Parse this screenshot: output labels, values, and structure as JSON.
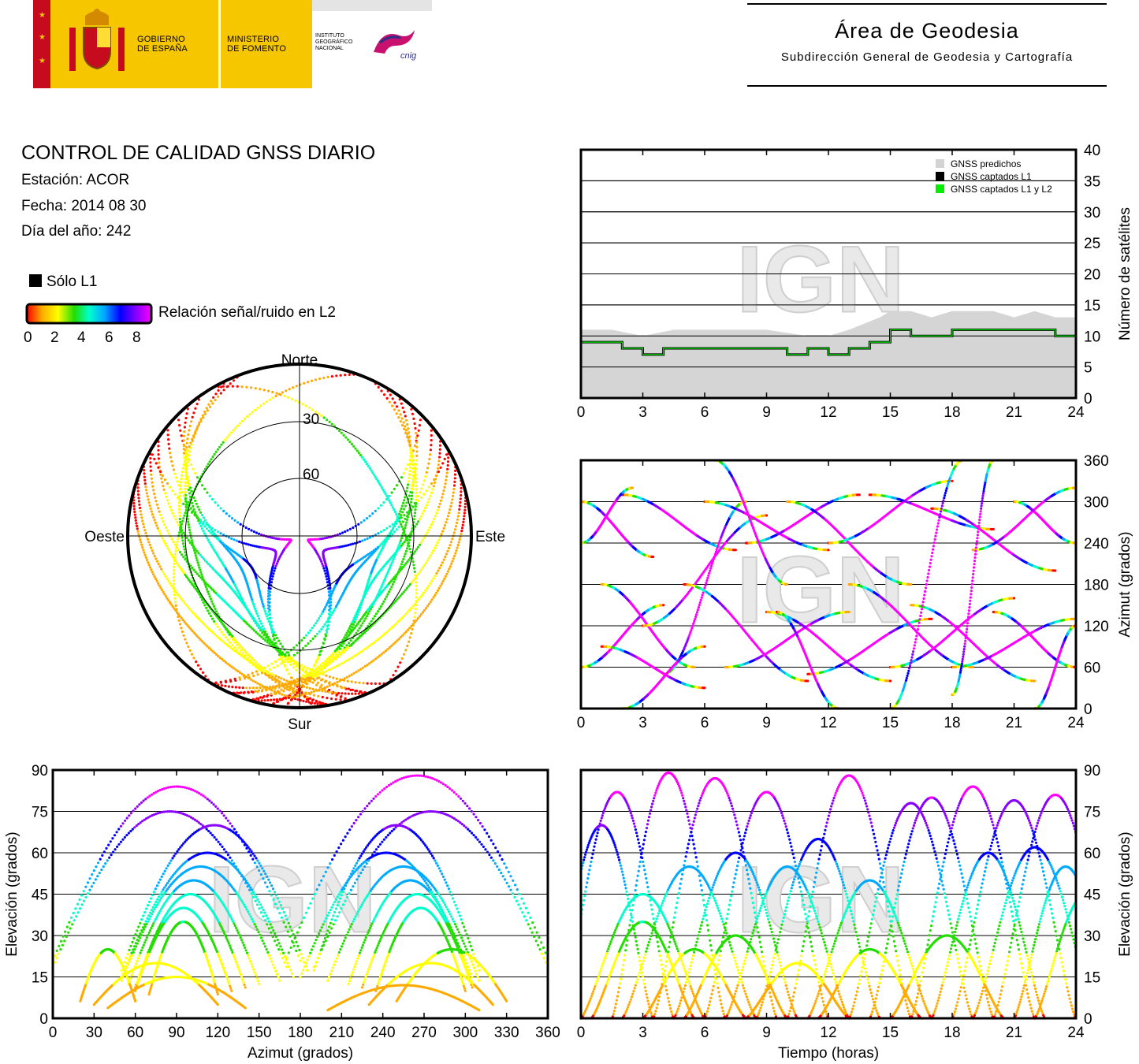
{
  "header": {
    "gobierno": [
      "GOBIERNO",
      "DE ESPAÑA"
    ],
    "ministerio": [
      "MINISTERIO",
      "DE FOMENTO"
    ],
    "instituto": [
      "INSTITUTO",
      "GEOGRÁFICO",
      "NACIONAL"
    ],
    "cnig": "cnig",
    "area_title": "Área de Geodesia",
    "area_subtitle": "Subdirección General de Geodesia y Cartografía"
  },
  "report": {
    "title": "CONTROL DE CALIDAD GNSS DIARIO",
    "station": "Estación: ACOR",
    "date": "Fecha: 2014 08 30",
    "doy": "Día del año: 242"
  },
  "legend": {
    "l1_only": "Sólo L1",
    "snr_label": "Relación señal/ruido en L2",
    "snr_ticks": [
      "0",
      "2",
      "4",
      "6",
      "8"
    ],
    "colors": {
      "l1_only": "#000000",
      "snr_scale": [
        "#ff0000",
        "#ffaa00",
        "#ffff00",
        "#22dd00",
        "#00ffcc",
        "#00aaff",
        "#0000ff",
        "#8800ff",
        "#ff00ff"
      ]
    }
  },
  "watermark": "IGN",
  "chart_data": [
    {
      "type": "polar",
      "id": "skyplot",
      "directions": {
        "north": "Norte",
        "south": "Sur",
        "east": "Este",
        "west": "Oeste"
      },
      "ring_labels": [
        "30",
        "60"
      ],
      "rings_elevation": [
        30,
        60
      ],
      "tracks": [
        {
          "start_az": 315,
          "max_el": 85,
          "snr": 9
        },
        {
          "start_az": 320,
          "max_el": 55,
          "snr": 6
        },
        {
          "start_az": 325,
          "max_el": 48,
          "snr": 5
        },
        {
          "start_az": 330,
          "max_el": 40,
          "snr": 4
        },
        {
          "start_az": 335,
          "max_el": 35,
          "snr": 4
        },
        {
          "start_az": 340,
          "max_el": 30,
          "snr": 3
        },
        {
          "start_az": 305,
          "max_el": 45,
          "snr": 5
        },
        {
          "start_az": 300,
          "max_el": 38,
          "snr": 4
        },
        {
          "start_az": 295,
          "max_el": 30,
          "snr": 3
        },
        {
          "start_az": 310,
          "max_el": 60,
          "snr": 7
        },
        {
          "start_az": 45,
          "max_el": 85,
          "snr": 9
        },
        {
          "start_az": 40,
          "max_el": 55,
          "snr": 6
        },
        {
          "start_az": 35,
          "max_el": 48,
          "snr": 5
        },
        {
          "start_az": 30,
          "max_el": 40,
          "snr": 4
        },
        {
          "start_az": 25,
          "max_el": 35,
          "snr": 4
        },
        {
          "start_az": 20,
          "max_el": 30,
          "snr": 3
        },
        {
          "start_az": 55,
          "max_el": 45,
          "snr": 5
        },
        {
          "start_az": 60,
          "max_el": 38,
          "snr": 4
        },
        {
          "start_az": 65,
          "max_el": 30,
          "snr": 3
        },
        {
          "start_az": 50,
          "max_el": 60,
          "snr": 7
        },
        {
          "start_az": 300,
          "max_el": 75,
          "snr": 8
        },
        {
          "start_az": 60,
          "max_el": 75,
          "snr": 8
        },
        {
          "start_az": 290,
          "max_el": 22,
          "snr": 2
        },
        {
          "start_az": 70,
          "max_el": 22,
          "snr": 2
        },
        {
          "start_az": 285,
          "max_el": 15,
          "snr": 2
        },
        {
          "start_az": 75,
          "max_el": 15,
          "snr": 2
        }
      ]
    },
    {
      "type": "line",
      "id": "sat-count",
      "ylabel": "Número de satélites",
      "xlim": [
        0,
        24
      ],
      "ylim": [
        0,
        40
      ],
      "xticks": [
        0,
        3,
        6,
        9,
        12,
        15,
        18,
        21,
        24
      ],
      "yticks": [
        0,
        5,
        10,
        15,
        20,
        25,
        30,
        35,
        40
      ],
      "legend": [
        "GNSS predichos",
        "GNSS captados L1",
        "GNSS captados L1 y L2"
      ],
      "legend_colors": [
        "#d3d3d3",
        "#000000",
        "#00ee00"
      ],
      "series": [
        {
          "name": "GNSS predichos",
          "x": [
            0,
            1.5,
            3,
            4.5,
            6,
            7,
            9,
            11,
            12,
            13,
            14.5,
            15,
            16,
            17,
            18,
            19,
            20,
            21,
            22,
            23,
            24
          ],
          "values": [
            11,
            11,
            10,
            11,
            11,
            11,
            11,
            10,
            10,
            11,
            13,
            14,
            14,
            13,
            14,
            14,
            14,
            13,
            14,
            13,
            13
          ]
        },
        {
          "name": "GNSS captados L1",
          "x": [
            0,
            1,
            2,
            3,
            4,
            5,
            6,
            7,
            8,
            9,
            10,
            11,
            12,
            13,
            14,
            15,
            16,
            17,
            18,
            19,
            20,
            21,
            22,
            23,
            24
          ],
          "values": [
            9,
            9,
            8,
            7,
            8,
            8,
            8,
            8,
            8,
            8,
            7,
            8,
            7,
            8,
            9,
            11,
            10,
            10,
            11,
            11,
            11,
            11,
            11,
            10,
            11
          ]
        },
        {
          "name": "GNSS captados L1 y L2",
          "x": [
            0,
            1,
            2,
            3,
            4,
            5,
            6,
            7,
            8,
            9,
            10,
            11,
            12,
            13,
            14,
            15,
            16,
            17,
            18,
            19,
            20,
            21,
            22,
            23,
            24
          ],
          "values": [
            9,
            9,
            8,
            7,
            8,
            8,
            8,
            8,
            8,
            8,
            7,
            8,
            7,
            8,
            9,
            11,
            10,
            10,
            11,
            11,
            11,
            11,
            11,
            10,
            11
          ]
        }
      ],
      "grid": true
    },
    {
      "type": "scatter",
      "id": "azimuth-time",
      "ylabel": "Azimut (grados)",
      "xlim": [
        0,
        24
      ],
      "ylim": [
        0,
        360
      ],
      "xticks": [
        0,
        3,
        6,
        9,
        12,
        15,
        18,
        21,
        24
      ],
      "yticks": [
        0,
        60,
        120,
        180,
        240,
        300,
        360
      ],
      "tracks": [
        {
          "t0": 0,
          "t1": 3.5,
          "az0": 300,
          "az1": 220
        },
        {
          "t0": 0,
          "t1": 4,
          "az0": 60,
          "az1": 150
        },
        {
          "t0": 1,
          "t1": 5.5,
          "az0": 180,
          "az1": 60
        },
        {
          "t0": 2,
          "t1": 7.5,
          "az0": 310,
          "az1": 230
        },
        {
          "t0": 3,
          "t1": 9,
          "az0": 120,
          "az1": 280
        },
        {
          "t0": 4,
          "t1": 8,
          "az0": 50,
          "az1": 300
        },
        {
          "t0": 5,
          "t1": 11,
          "az0": 180,
          "az1": 40
        },
        {
          "t0": 6,
          "t1": 12,
          "az0": 300,
          "az1": 230
        },
        {
          "t0": 7,
          "t1": 13,
          "az0": 60,
          "az1": 140
        },
        {
          "t0": 8,
          "t1": 13.5,
          "az0": 240,
          "az1": 310
        },
        {
          "t0": 9,
          "t1": 15,
          "az0": 140,
          "az1": 40
        },
        {
          "t0": 10,
          "t1": 16,
          "az0": 300,
          "az1": 180
        },
        {
          "t0": 11,
          "t1": 17,
          "az0": 50,
          "az1": 130
        },
        {
          "t0": 12,
          "t1": 18,
          "az0": 240,
          "az1": 330
        },
        {
          "t0": 13,
          "t1": 19,
          "az0": 180,
          "az1": 60
        },
        {
          "t0": 14,
          "t1": 20,
          "az0": 310,
          "az1": 260
        },
        {
          "t0": 15,
          "t1": 21,
          "az0": 60,
          "az1": 160
        },
        {
          "t0": 16,
          "t1": 22,
          "az0": 150,
          "az1": 40
        },
        {
          "t0": 17,
          "t1": 23,
          "az0": 290,
          "az1": 200
        },
        {
          "t0": 18,
          "t1": 24,
          "az0": 60,
          "az1": 130
        },
        {
          "t0": 19,
          "t1": 24,
          "az0": 230,
          "az1": 320
        },
        {
          "t0": 20,
          "t1": 24,
          "az0": 140,
          "az1": 60
        },
        {
          "t0": 21,
          "t1": 24,
          "az0": 300,
          "az1": 240
        },
        {
          "t0": 0,
          "t1": 2.5,
          "az0": 240,
          "az1": 320
        },
        {
          "t0": 1,
          "t1": 6,
          "az0": 90,
          "az1": 30
        },
        {
          "t0": 2,
          "t1": 6,
          "az0": 0,
          "az1": 90
        },
        {
          "t0": 6.5,
          "t1": 10,
          "az0": 360,
          "az1": 180
        },
        {
          "t0": 9.5,
          "t1": 12.5,
          "az0": 140,
          "az1": 0
        },
        {
          "t0": 15,
          "t1": 18.5,
          "az0": 0,
          "az1": 360
        },
        {
          "t0": 18,
          "t1": 20,
          "az0": 20,
          "az1": 360
        },
        {
          "t0": 22,
          "t1": 24,
          "az0": 0,
          "az1": 120
        }
      ],
      "grid": true
    },
    {
      "type": "scatter",
      "id": "elev-azimuth",
      "xlabel": "Azimut (grados)",
      "ylabel": "Elevación (grados)",
      "xlim": [
        0,
        360
      ],
      "ylim": [
        0,
        90
      ],
      "xticks": [
        0,
        30,
        60,
        90,
        120,
        150,
        180,
        210,
        240,
        270,
        300,
        330,
        360
      ],
      "yticks": [
        0,
        15,
        30,
        45,
        60,
        75,
        90
      ],
      "arches": [
        {
          "az0": 0,
          "az1": 170,
          "peak": 75
        },
        {
          "az0": 50,
          "az1": 185,
          "peak": 70
        },
        {
          "az0": 50,
          "az1": 175,
          "peak": 60
        },
        {
          "az0": 50,
          "az1": 165,
          "peak": 55
        },
        {
          "az0": 55,
          "az1": 150,
          "peak": 50
        },
        {
          "az0": 60,
          "az1": 140,
          "peak": 45
        },
        {
          "az0": 60,
          "az1": 130,
          "peak": 40
        },
        {
          "az0": 70,
          "az1": 120,
          "peak": 35
        },
        {
          "az0": 190,
          "az1": 310,
          "peak": 70
        },
        {
          "az0": 180,
          "az1": 305,
          "peak": 60
        },
        {
          "az0": 200,
          "az1": 310,
          "peak": 55
        },
        {
          "az0": 215,
          "az1": 305,
          "peak": 50
        },
        {
          "az0": 225,
          "az1": 305,
          "peak": 45
        },
        {
          "az0": 235,
          "az1": 300,
          "peak": 40
        },
        {
          "az0": 190,
          "az1": 360,
          "peak": 75
        },
        {
          "az0": 20,
          "az1": 60,
          "peak": 25
        },
        {
          "az0": 30,
          "az1": 120,
          "peak": 20
        },
        {
          "az0": 40,
          "az1": 140,
          "peak": 15
        },
        {
          "az0": 250,
          "az1": 330,
          "peak": 25
        },
        {
          "az0": 230,
          "az1": 320,
          "peak": 20
        },
        {
          "az0": 200,
          "az1": 310,
          "peak": 12
        },
        {
          "az0": 170,
          "az1": 360,
          "peak": 88
        },
        {
          "az0": 0,
          "az1": 180,
          "peak": 84
        }
      ],
      "grid": true
    },
    {
      "type": "line",
      "id": "elev-time",
      "xlabel": "Tiempo (horas)",
      "ylabel": "Elevación (grados)",
      "xlim": [
        0,
        24
      ],
      "ylim": [
        0,
        90
      ],
      "xticks": [
        0,
        3,
        6,
        9,
        12,
        15,
        18,
        21,
        24
      ],
      "yticks": [
        0,
        15,
        30,
        45,
        60,
        75,
        90
      ],
      "passes": [
        {
          "t0": -1.5,
          "t1": 3.5,
          "peak": 70
        },
        {
          "t0": -1,
          "t1": 4.5,
          "peak": 82
        },
        {
          "t0": 0,
          "t1": 6,
          "peak": 45
        },
        {
          "t0": 0.5,
          "t1": 5.5,
          "peak": 35
        },
        {
          "t0": 1.5,
          "t1": 7,
          "peak": 89
        },
        {
          "t0": 2,
          "t1": 8.5,
          "peak": 55
        },
        {
          "t0": 3,
          "t1": 8,
          "peak": 25
        },
        {
          "t0": 3.5,
          "t1": 9.5,
          "peak": 87
        },
        {
          "t0": 4.5,
          "t1": 10.5,
          "peak": 60
        },
        {
          "t0": 5,
          "t1": 10,
          "peak": 30
        },
        {
          "t0": 6,
          "t1": 12,
          "peak": 82
        },
        {
          "t0": 7,
          "t1": 13,
          "peak": 55
        },
        {
          "t0": 8,
          "t1": 13,
          "peak": 20
        },
        {
          "t0": 8.5,
          "t1": 14.5,
          "peak": 65
        },
        {
          "t0": 10,
          "t1": 16,
          "peak": 88
        },
        {
          "t0": 11,
          "t1": 17,
          "peak": 50
        },
        {
          "t0": 11.5,
          "t1": 16.5,
          "peak": 25
        },
        {
          "t0": 13,
          "t1": 19,
          "peak": 78
        },
        {
          "t0": 14,
          "t1": 20,
          "peak": 80
        },
        {
          "t0": 15,
          "t1": 20.5,
          "peak": 30
        },
        {
          "t0": 16,
          "t1": 22,
          "peak": 84
        },
        {
          "t0": 17,
          "t1": 22.5,
          "peak": 60
        },
        {
          "t0": 18,
          "t1": 24,
          "peak": 79
        },
        {
          "t0": 19,
          "t1": 25,
          "peak": 62
        },
        {
          "t0": 20,
          "t1": 26,
          "peak": 81
        },
        {
          "t0": 21,
          "t1": 26,
          "peak": 55
        },
        {
          "t0": 22,
          "t1": 27,
          "peak": 45
        }
      ],
      "grid": true
    }
  ]
}
